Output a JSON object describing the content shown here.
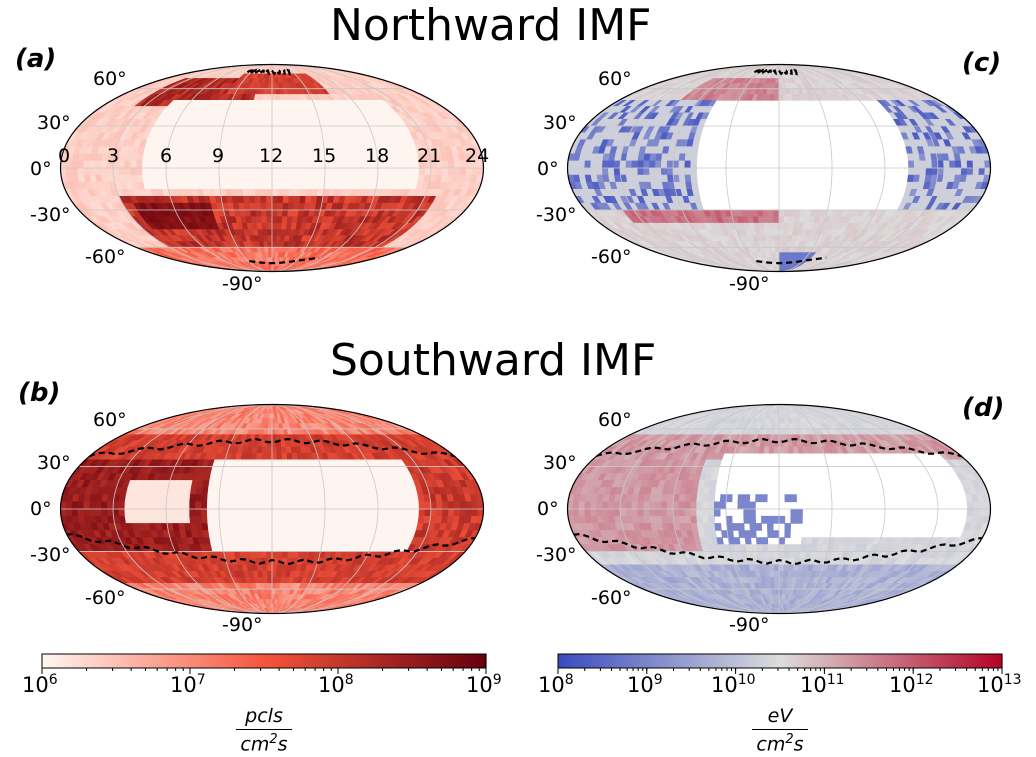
{
  "titles": {
    "north": "Northward IMF",
    "south": "Southward IMF"
  },
  "panel_labels": [
    "(a)",
    "(b)",
    "(c)",
    "(d)"
  ],
  "lat_labels": [
    "60°",
    "30°",
    "0°",
    "-30°",
    "-60°",
    "-90°"
  ],
  "lon_labels": [
    "0",
    "3",
    "6",
    "9",
    "12",
    "15",
    "18",
    "21",
    "24"
  ],
  "colorbar_left": {
    "ticks": [
      "10",
      "10",
      "10",
      "10"
    ],
    "exps": [
      "6",
      "7",
      "8",
      "9"
    ],
    "unit_num": "pcls",
    "unit_den": "cm",
    "unit_den_exp": "2",
    "unit_den_tail": "s"
  },
  "colorbar_right": {
    "ticks": [
      "10",
      "10",
      "10",
      "10",
      "10",
      "10"
    ],
    "exps": [
      "8",
      "9",
      "10",
      "11",
      "12",
      "13"
    ],
    "unit_num": "eV",
    "unit_den": "cm",
    "unit_den_exp": "2",
    "unit_den_tail": "s"
  },
  "colors": {
    "reds_low": "#fff5f0",
    "reds_mid": "#f6553c",
    "reds_high": "#67000d",
    "cw_low": "#3b4cc0",
    "cw_mid": "#dddddd",
    "cw_high": "#b40426"
  },
  "chart_data": [
    {
      "type": "heatmap",
      "panel": "(a)",
      "projection": "mollweide",
      "quantity": "particle flux",
      "scale": "log",
      "clim": [
        1000000.0,
        1000000000.0
      ],
      "x_ticks": [
        0,
        3,
        6,
        9,
        12,
        15,
        18,
        21,
        24
      ],
      "y_ticks": [
        60,
        30,
        0,
        -30,
        -60,
        -90
      ],
      "boundary": "dashed black lines near poles (~75°N, ~-72°S)",
      "description_regions": [
        {
          "region": "northern band 45-75°N, 3-10h",
          "value": 100000000.0
        },
        {
          "region": "southern band -25 to -55°, 3-22h",
          "value": 300000000.0
        },
        {
          "region": "equatorial 0-20°, 6-20h",
          "value": 1000000.0
        }
      ]
    },
    {
      "type": "heatmap",
      "panel": "(b)",
      "projection": "mollweide",
      "quantity": "particle flux",
      "scale": "log",
      "clim": [
        1000000.0,
        1000000000.0
      ],
      "boundary": "dashed black lines near ±35°",
      "description_regions": [
        {
          "region": "high-lat bands >35°",
          "value": 100000000.0
        },
        {
          "region": "dayside equatorial 8-18h",
          "value": 1000000.0
        },
        {
          "region": "nightside equatorial 0-8h",
          "value": 300000000.0
        }
      ]
    },
    {
      "type": "heatmap",
      "panel": "(c)",
      "projection": "mollweide",
      "quantity": "energy flux",
      "scale": "log",
      "clim": [
        100000000.0,
        10000000000000.0
      ],
      "boundary": "dashed black lines near poles",
      "description_regions": [
        {
          "region": "equatorial 0-20°, 6-20h",
          "value": 100000000.0
        },
        {
          "region": "northern and southern bands",
          "value": 300000000000.0
        }
      ]
    },
    {
      "type": "heatmap",
      "panel": "(d)",
      "projection": "mollweide",
      "quantity": "energy flux",
      "scale": "log",
      "clim": [
        100000000.0,
        10000000000000.0
      ],
      "boundary": "dashed black lines near ±35°",
      "description_regions": [
        {
          "region": "dayside equatorial",
          "value": 100000000.0
        },
        {
          "region": "high-lat bands",
          "value": 300000000000.0
        }
      ]
    }
  ]
}
